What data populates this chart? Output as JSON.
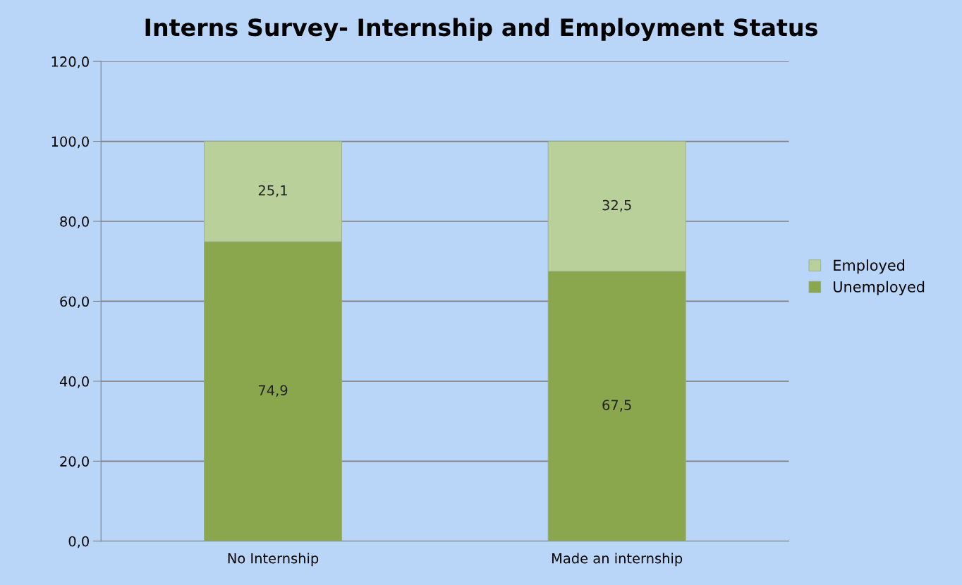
{
  "chart_data": {
    "type": "bar",
    "title": "Interns Survey- Internship and Employment Status",
    "categories": [
      "No Internship",
      "Made an internship"
    ],
    "stacked": true,
    "series": [
      {
        "name": "Unemployed",
        "color": "#8aa74e",
        "values": [
          74.9,
          67.5
        ],
        "value_labels": [
          "74,9",
          "67,5"
        ]
      },
      {
        "name": "Employed",
        "color": "#bad09a",
        "values": [
          25.1,
          32.5
        ],
        "value_labels": [
          "25,1",
          "32,5"
        ]
      }
    ],
    "ylim": [
      0,
      120
    ],
    "yticks": [
      {
        "value": 0,
        "label": "0,0"
      },
      {
        "value": 20,
        "label": "20,0"
      },
      {
        "value": 40,
        "label": "40,0"
      },
      {
        "value": 60,
        "label": "60,0"
      },
      {
        "value": 80,
        "label": "80,0"
      },
      {
        "value": 100,
        "label": "100,0"
      },
      {
        "value": 120,
        "label": "120,0"
      }
    ],
    "grid": "y",
    "legend": "right"
  }
}
